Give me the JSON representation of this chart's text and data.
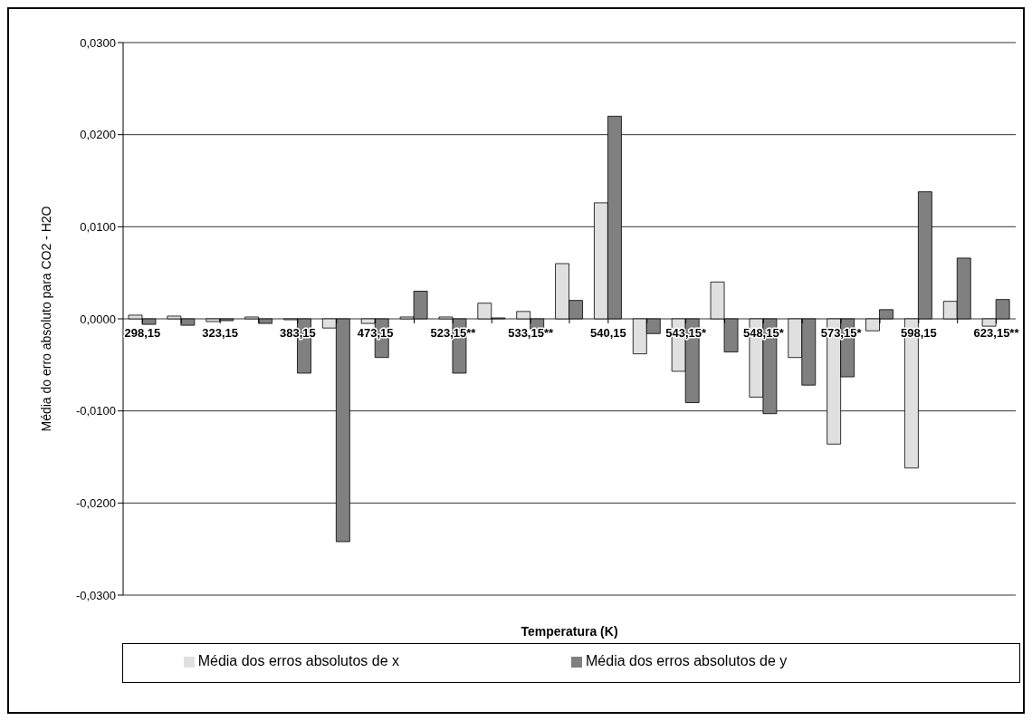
{
  "chart_data": {
    "type": "bar",
    "xlabel": "Temperatura (K)",
    "ylabel": "Média do erro absoluto para CO2 - H2O",
    "categories": [
      "298,15",
      null,
      "323,15",
      null,
      "383,15",
      null,
      "473,15",
      null,
      "523,15**",
      null,
      "533,15**",
      null,
      "540,15",
      null,
      "543,15*",
      null,
      "548,15*",
      null,
      "573,15*",
      null,
      "598,15",
      null,
      "623,15**"
    ],
    "series": [
      {
        "name": "Média dos erros absolutos de x",
        "color": "#e0e0e0",
        "values": [
          0.0004,
          0.0003,
          -0.0003,
          0.0002,
          -0.0001,
          -0.001,
          -0.0005,
          0.0002,
          0.0002,
          0.0017,
          0.0008,
          0.006,
          0.0126,
          -0.0038,
          -0.0057,
          0.004,
          -0.0085,
          -0.0042,
          -0.0136,
          -0.0013,
          -0.0162,
          0.0019,
          -0.0008
        ]
      },
      {
        "name": "Média dos erros absolutos de y",
        "color": "#808080",
        "values": [
          -0.0006,
          -0.0007,
          -0.0002,
          -0.0005,
          -0.0059,
          -0.0242,
          -0.0042,
          0.003,
          -0.0059,
          0.0001,
          -0.0011,
          0.002,
          0.022,
          -0.0016,
          -0.0091,
          -0.0036,
          -0.0103,
          -0.0072,
          -0.0063,
          0.001,
          0.0138,
          0.0066,
          0.0021
        ]
      }
    ],
    "ylim": [
      -0.03,
      0.03
    ],
    "yticks": [
      {
        "value": -0.03,
        "label": "-0,0300"
      },
      {
        "value": -0.02,
        "label": "-0,0200"
      },
      {
        "value": -0.01,
        "label": "-0,0100"
      },
      {
        "value": 0,
        "label": "0,0000"
      },
      {
        "value": 0.01,
        "label": "0,0100"
      },
      {
        "value": 0.02,
        "label": "0,0200"
      },
      {
        "value": 0.03,
        "label": "0,0300"
      }
    ],
    "grid": "y",
    "legend": "bottom"
  }
}
